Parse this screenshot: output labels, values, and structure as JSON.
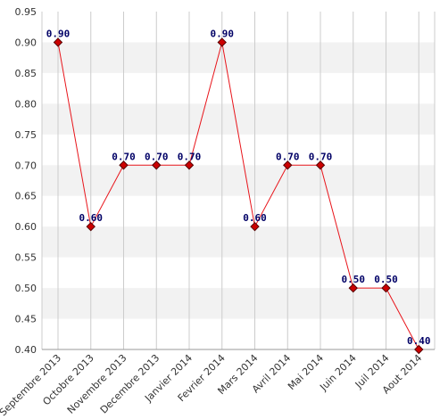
{
  "chart_data": {
    "type": "line",
    "categories": [
      "Septembre 2013",
      "Octobre 2013",
      "Novembre 2013",
      "Decembre 2013",
      "Janvier 2014",
      "Fevrier 2014",
      "Mars 2014",
      "Avril 2014",
      "Mai 2014",
      "Juin 2014",
      "Juil 2014",
      "Aout 2014"
    ],
    "series": [
      {
        "values": [
          0.9,
          0.6,
          0.7,
          0.7,
          0.7,
          0.9,
          0.6,
          0.7,
          0.7,
          0.5,
          0.5,
          0.4
        ],
        "labels": [
          "0.90",
          "0.60",
          "0.70",
          "0.70",
          "0.70",
          "0.90",
          "0.60",
          "0.70",
          "0.70",
          "0.50",
          "0.50",
          "0.40"
        ]
      }
    ],
    "yticks": [
      "0.95",
      "0.90",
      "0.85",
      "0.80",
      "0.75",
      "0.70",
      "0.65",
      "0.60",
      "0.55",
      "0.50",
      "0.45",
      "0.40"
    ],
    "ylim": [
      0.4,
      0.95
    ],
    "grid": true,
    "alternating_bands": true,
    "colors": {
      "line": "#e8141a",
      "marker_fill": "#cc0000",
      "marker_stroke": "#550000",
      "band": "#f2f2f2",
      "grid": "#cccccc",
      "label": "#000066"
    }
  }
}
